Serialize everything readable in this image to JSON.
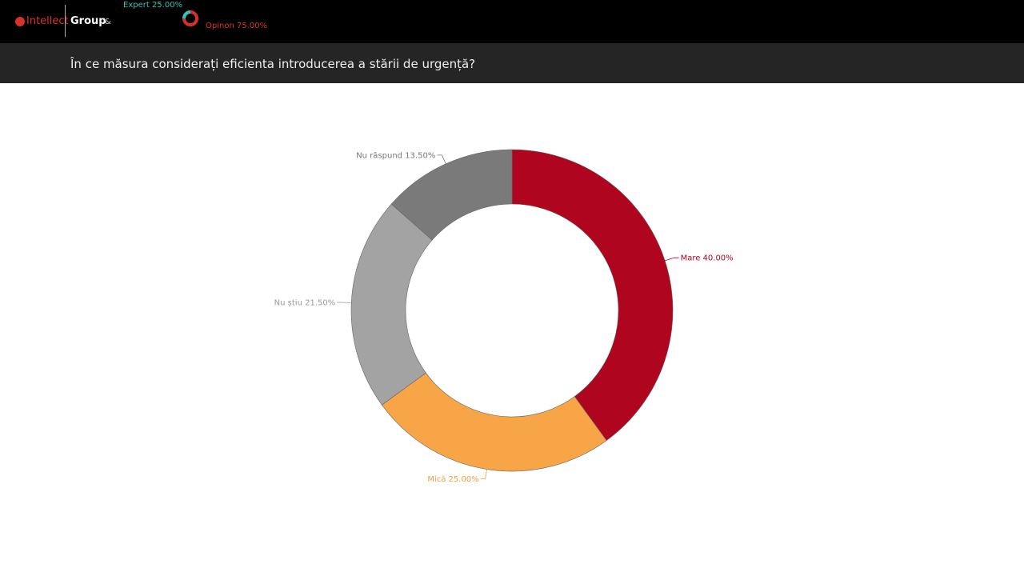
{
  "header": {
    "logo_text": "Intellect",
    "group_text": "Group",
    "amp": "&",
    "mini_chart": {
      "expert_label": "Expert 25.00%",
      "opinion_label": "Opinon 75.00%",
      "expert_value": 25,
      "opinion_value": 75,
      "expert_color": "#2ec4b6",
      "opinion_color": "#d8312a"
    }
  },
  "question": "În ce măsura considerați eficienta introducerea a stării de urgență?",
  "chart_data": {
    "type": "pie",
    "donut": true,
    "title": "În ce măsura considerați eficienta introducerea a stării de urgență?",
    "slices": [
      {
        "name": "Mare",
        "value": 40.0,
        "label": "Mare 40.00%",
        "color": "#b0051e",
        "label_color": "#b0051e"
      },
      {
        "name": "Mică",
        "value": 25.0,
        "label": "Mică 25.00%",
        "color": "#f8a547",
        "label_color": "#f0a040"
      },
      {
        "name": "Nu știu",
        "value": 21.5,
        "label": "Nu știu 21.50%",
        "color": "#a3a3a3",
        "label_color": "#999999"
      },
      {
        "name": "Nu răspund",
        "value": 13.5,
        "label": "Nu răspund 13.50%",
        "color": "#7a7a7a",
        "label_color": "#777777"
      }
    ]
  }
}
